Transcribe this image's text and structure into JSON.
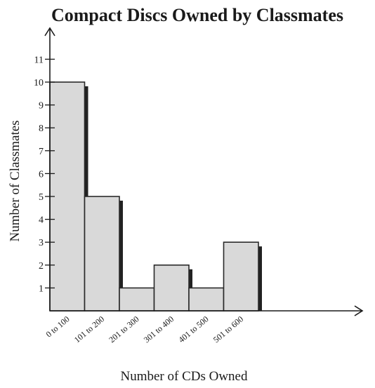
{
  "chart_data": {
    "type": "bar",
    "title": "Compact Discs Owned by Classmates",
    "xlabel": "Number of CDs Owned",
    "ylabel": "Number of Classmates",
    "categories": [
      "0 to 100",
      "101 to 200",
      "201 to 300",
      "301 to 400",
      "401 to 500",
      "501 to 600"
    ],
    "values": [
      10,
      5,
      1,
      2,
      1,
      3
    ],
    "yticks": [
      1,
      2,
      3,
      4,
      5,
      6,
      7,
      8,
      9,
      10,
      11
    ],
    "ylim": [
      0,
      12
    ],
    "grid": false,
    "legend": "none",
    "colors": {
      "bar_fill": "#d9d9d9",
      "bar_stroke": "#2a2a2a",
      "bar_shadow": "#222222",
      "axis": "#1a1a1a"
    }
  }
}
